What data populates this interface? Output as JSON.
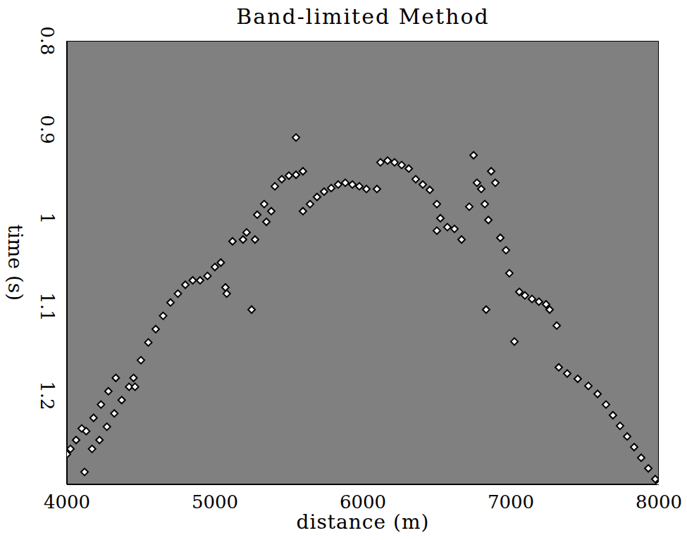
{
  "chart_data": {
    "type": "scatter",
    "title": "Band-limited Method",
    "x_label": "distance (m)",
    "y_label": "time (s)",
    "marker": "diamond",
    "color": "#ffffff",
    "grid": false,
    "xlim": [
      4000,
      8000
    ],
    "ylim": [
      0.8,
      1.3
    ],
    "xticks": [
      4000,
      5000,
      6000,
      7000,
      8000
    ],
    "yticks": [
      0.8,
      0.9,
      1,
      1.1,
      1.2
    ],
    "x": [
      4000,
      4024,
      4062,
      4100,
      4119,
      4130,
      4170,
      4180,
      4220,
      4230,
      4270,
      4280,
      4320,
      4330,
      4370,
      4420,
      4450,
      4460,
      4500,
      4550,
      4600,
      4650,
      4700,
      4750,
      4800,
      4850,
      4900,
      4950,
      5000,
      5040,
      5071,
      5080,
      5248,
      5119,
      5190,
      5214,
      5271,
      5286,
      5333,
      5348,
      5381,
      5405,
      5452,
      5500,
      5548,
      5595,
      5548,
      5595,
      5643,
      5690,
      5738,
      5786,
      5833,
      5881,
      5929,
      5976,
      6024,
      6095,
      6119,
      6167,
      6214,
      6262,
      6310,
      6357,
      6405,
      6452,
      6500,
      6524,
      6571,
      6619,
      6667,
      6500,
      6748,
      6771,
      6800,
      6824,
      6848,
      6867,
      6895,
      6719,
      6929,
      6967,
      6990,
      6833,
      7024,
      7057,
      7095,
      7143,
      7190,
      7238,
      7262,
      7310,
      7324,
      7381,
      7452,
      7524,
      7586,
      7643,
      7690,
      7738,
      7786,
      7833,
      7881,
      7929,
      7976,
      8000
    ],
    "values": [
      1.266,
      1.26,
      1.25,
      1.237,
      1.286,
      1.24,
      1.26,
      1.225,
      1.25,
      1.21,
      1.235,
      1.195,
      1.22,
      1.18,
      1.205,
      1.19,
      1.18,
      1.19,
      1.16,
      1.14,
      1.125,
      1.11,
      1.095,
      1.085,
      1.075,
      1.07,
      1.07,
      1.065,
      1.055,
      1.05,
      1.078,
      1.085,
      1.103,
      1.026,
      1.024,
      1.016,
      1.024,
      0.996,
      0.984,
      1.004,
      0.992,
      0.964,
      0.956,
      0.952,
      0.951,
      0.947,
      0.909,
      0.992,
      0.984,
      0.976,
      0.97,
      0.966,
      0.962,
      0.96,
      0.962,
      0.964,
      0.967,
      0.967,
      0.937,
      0.935,
      0.937,
      0.94,
      0.944,
      0.956,
      0.962,
      0.968,
      0.984,
      1.0,
      1.01,
      1.012,
      1.024,
      1.014,
      0.929,
      0.96,
      0.967,
      0.984,
      1.002,
      0.947,
      0.96,
      0.987,
      1.022,
      1.036,
      1.062,
      1.103,
      1.139,
      1.083,
      1.087,
      1.091,
      1.094,
      1.097,
      1.103,
      1.121,
      1.168,
      1.175,
      1.181,
      1.189,
      1.198,
      1.21,
      1.222,
      1.234,
      1.246,
      1.258,
      1.27,
      1.282,
      1.294,
      1.3
    ]
  }
}
